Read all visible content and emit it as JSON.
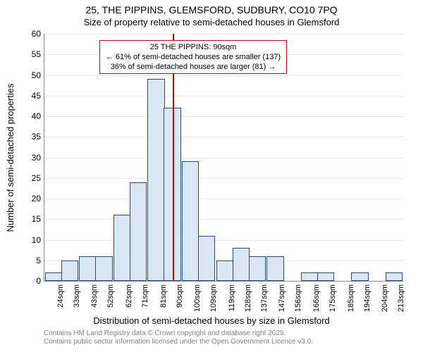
{
  "title_line1": "25, THE PIPPINS, GLEMSFORD, SUDBURY, CO10 7PQ",
  "title_line2": "Size of property relative to semi-detached houses in Glemsford",
  "ylabel": "Number of semi-detached properties",
  "xlabel": "Distribution of semi-detached houses by size in Glemsford",
  "footer_line1": "Contains HM Land Registry data © Crown copyright and database right 2025.",
  "footer_line2": "Contains public sector information licensed under the Open Government Licence v3.0.",
  "annotation": {
    "line1": "25 THE PIPPINS: 90sqm",
    "line2": "← 61% of semi-detached houses are smaller (137)",
    "line3": "36% of semi-detached houses are larger (81) →",
    "border_color": "#cc0000"
  },
  "marker": {
    "x_value": 90,
    "color": "#cc0000"
  },
  "chart": {
    "type": "histogram",
    "x_min": 19,
    "x_max": 218,
    "ylim": [
      0,
      60
    ],
    "ytick_step": 5,
    "background_color": "#ffffff",
    "grid_color": "#e8e8e8",
    "axis_color": "#888888",
    "bar_fill": "#dbe6f4",
    "bar_border": "#2b4a78",
    "xtick_labels": [
      "24sqm",
      "33sqm",
      "43sqm",
      "52sqm",
      "62sqm",
      "71sqm",
      "81sqm",
      "90sqm",
      "100sqm",
      "109sqm",
      "119sqm",
      "128sqm",
      "137sqm",
      "147sqm",
      "156sqm",
      "166sqm",
      "175sqm",
      "185sqm",
      "194sqm",
      "204sqm",
      "213sqm"
    ],
    "xtick_values": [
      24,
      33,
      43,
      52,
      62,
      71,
      81,
      90,
      100,
      109,
      119,
      128,
      137,
      147,
      156,
      166,
      175,
      185,
      194,
      204,
      213
    ],
    "bars": [
      {
        "x": 24,
        "v": 2
      },
      {
        "x": 33,
        "v": 5
      },
      {
        "x": 43,
        "v": 6
      },
      {
        "x": 52,
        "v": 6
      },
      {
        "x": 62,
        "v": 16
      },
      {
        "x": 71,
        "v": 24
      },
      {
        "x": 81,
        "v": 49
      },
      {
        "x": 90,
        "v": 42
      },
      {
        "x": 100,
        "v": 29
      },
      {
        "x": 109,
        "v": 11
      },
      {
        "x": 119,
        "v": 5
      },
      {
        "x": 128,
        "v": 8
      },
      {
        "x": 137,
        "v": 6
      },
      {
        "x": 147,
        "v": 6
      },
      {
        "x": 156,
        "v": 0
      },
      {
        "x": 166,
        "v": 2
      },
      {
        "x": 175,
        "v": 2
      },
      {
        "x": 185,
        "v": 0
      },
      {
        "x": 194,
        "v": 2
      },
      {
        "x": 204,
        "v": 0
      },
      {
        "x": 213,
        "v": 2
      }
    ],
    "bar_width_units": 9.5
  }
}
